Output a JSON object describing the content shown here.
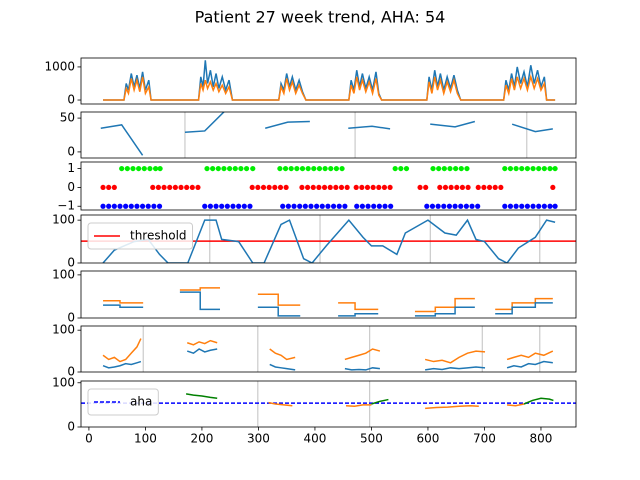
{
  "chart_data": [
    {
      "type": "line",
      "title": "Patient 27 week trend, AHA: 54",
      "xlim": [
        -14,
        862
      ],
      "ylim": [
        -120,
        1270
      ],
      "yticks": [
        0,
        1000
      ],
      "x": [
        25,
        62,
        66,
        70,
        75,
        80,
        85,
        90,
        95,
        100,
        106,
        110,
        194,
        198,
        202,
        206,
        210,
        215,
        220,
        225,
        230,
        236,
        242,
        248,
        254,
        336,
        340,
        345,
        350,
        355,
        360,
        366,
        372,
        378,
        384,
        460,
        464,
        469,
        474,
        479,
        484,
        490,
        496,
        502,
        508,
        513,
        518,
        598,
        602,
        607,
        612,
        617,
        622,
        628,
        634,
        640,
        646,
        652,
        658,
        734,
        738,
        743,
        748,
        753,
        758,
        764,
        770,
        776,
        782,
        788,
        794,
        800,
        806,
        810,
        825
      ],
      "series": [
        {
          "color": "#1f77b4",
          "values": [
            0,
            0,
            500,
            300,
            800,
            400,
            750,
            350,
            850,
            300,
            600,
            0,
            0,
            700,
            400,
            1200,
            500,
            900,
            400,
            800,
            350,
            700,
            300,
            600,
            0,
            0,
            500,
            300,
            800,
            400,
            700,
            300,
            600,
            250,
            0,
            0,
            600,
            300,
            900,
            400,
            800,
            350,
            700,
            300,
            850,
            200,
            0,
            0,
            700,
            300,
            900,
            400,
            800,
            300,
            700,
            350,
            750,
            300,
            0,
            0,
            600,
            300,
            800,
            400,
            1000,
            500,
            850,
            400,
            1050,
            500,
            900,
            400,
            700,
            0,
            0
          ]
        },
        {
          "color": "#ff7f0e",
          "values": [
            0,
            0,
            350,
            200,
            650,
            300,
            600,
            250,
            700,
            200,
            400,
            0,
            0,
            500,
            300,
            600,
            350,
            550,
            300,
            500,
            250,
            450,
            200,
            400,
            0,
            0,
            400,
            200,
            650,
            300,
            550,
            200,
            450,
            200,
            0,
            0,
            450,
            200,
            700,
            300,
            600,
            250,
            550,
            200,
            650,
            150,
            0,
            0,
            550,
            200,
            700,
            300,
            600,
            200,
            550,
            250,
            600,
            200,
            0,
            0,
            450,
            200,
            650,
            300,
            700,
            350,
            650,
            300,
            700,
            350,
            650,
            300,
            500,
            0,
            0
          ]
        }
      ]
    },
    {
      "type": "line",
      "xlim": [
        -14,
        862
      ],
      "ylim": [
        -9,
        59
      ],
      "yticks": [
        0,
        50
      ],
      "xgrid": [
        170,
        471,
        775
      ],
      "x": [
        21,
        58,
        95,
        132,
        170,
        205,
        240,
        276,
        312,
        352,
        391,
        425,
        459,
        501,
        533,
        568,
        604,
        648,
        683,
        716,
        749,
        790,
        821
      ],
      "series": [
        {
          "color": "#1f77b4",
          "values": [
            35,
            40,
            -5,
            null,
            29,
            31,
            60,
            null,
            35,
            44,
            45,
            null,
            35,
            38,
            34,
            null,
            41,
            37,
            45,
            null,
            41,
            30,
            34
          ]
        }
      ]
    },
    {
      "type": "scatter",
      "xlim": [
        -14,
        862
      ],
      "ylim": [
        -1.2,
        1.35
      ],
      "yticks": [
        {
          "value": -1,
          "label": "−1"
        },
        0,
        1
      ],
      "series": [
        {
          "color": "#00ee00",
          "x": [
            58,
            68,
            78,
            88,
            98,
            108,
            118,
            126,
            209,
            219,
            229,
            239,
            249,
            259,
            269,
            279,
            290,
            338,
            348,
            358,
            368,
            378,
            388,
            398,
            408,
            418,
            428,
            438,
            448,
            542,
            552,
            562,
            609,
            619,
            629,
            639,
            649,
            659,
            669,
            736,
            746,
            756,
            766,
            776,
            786,
            796,
            806,
            816,
            825
          ],
          "values": [
            1,
            1,
            1,
            1,
            1,
            1,
            1,
            1,
            1,
            1,
            1,
            1,
            1,
            1,
            1,
            1,
            1,
            1,
            1,
            1,
            1,
            1,
            1,
            1,
            1,
            1,
            1,
            1,
            1,
            1,
            1,
            1,
            1,
            1,
            1,
            1,
            1,
            1,
            1,
            1,
            1,
            1,
            1,
            1,
            1,
            1,
            1,
            1,
            1
          ]
        },
        {
          "color": "#ff0000",
          "x": [
            25,
            35,
            45,
            113,
            123,
            133,
            143,
            153,
            163,
            173,
            183,
            193,
            289,
            299,
            309,
            319,
            329,
            339,
            349,
            377,
            387,
            397,
            407,
            417,
            427,
            437,
            447,
            457,
            473,
            483,
            493,
            503,
            513,
            523,
            533,
            586,
            596,
            621,
            631,
            641,
            651,
            661,
            671,
            689,
            699,
            709,
            719,
            729,
            821
          ],
          "values": [
            0,
            0,
            0,
            0,
            0,
            0,
            0,
            0,
            0,
            0,
            0,
            0,
            0,
            0,
            0,
            0,
            0,
            0,
            0,
            0,
            0,
            0,
            0,
            0,
            0,
            0,
            0,
            0,
            0,
            0,
            0,
            0,
            0,
            0,
            0,
            0,
            0,
            0,
            0,
            0,
            0,
            0,
            0,
            0,
            0,
            0,
            0,
            0,
            0
          ]
        },
        {
          "color": "#0000ff",
          "x": [
            25,
            35,
            45,
            55,
            65,
            75,
            85,
            95,
            105,
            115,
            125,
            205,
            215,
            225,
            235,
            245,
            255,
            265,
            275,
            285,
            343,
            353,
            363,
            373,
            383,
            393,
            403,
            413,
            423,
            433,
            443,
            453,
            474,
            484,
            494,
            504,
            514,
            524,
            534,
            598,
            608,
            618,
            628,
            638,
            648,
            658,
            668,
            678,
            688,
            736,
            746,
            756,
            766,
            776,
            786,
            796,
            806,
            816,
            825
          ],
          "values": [
            -1,
            -1,
            -1,
            -1,
            -1,
            -1,
            -1,
            -1,
            -1,
            -1,
            -1,
            -1,
            -1,
            -1,
            -1,
            -1,
            -1,
            -1,
            -1,
            -1,
            -1,
            -1,
            -1,
            -1,
            -1,
            -1,
            -1,
            -1,
            -1,
            -1,
            -1,
            -1,
            -1,
            -1,
            -1,
            -1,
            -1,
            -1,
            -1,
            -1,
            -1,
            -1,
            -1,
            -1,
            -1,
            -1,
            -1,
            -1,
            -1,
            -1,
            -1,
            -1,
            -1,
            -1,
            -1,
            -1,
            -1,
            -1,
            -1
          ]
        }
      ]
    },
    {
      "type": "line",
      "xlim": [
        -14,
        862
      ],
      "ylim": [
        0,
        112
      ],
      "yticks": [
        0,
        100
      ],
      "xgrid": [
        214,
        409,
        604,
        798
      ],
      "legend": "upper left",
      "x": [
        25,
        45,
        80,
        105,
        125,
        140,
        175,
        205,
        225,
        235,
        265,
        290,
        310,
        340,
        355,
        380,
        395,
        420,
        460,
        485,
        500,
        520,
        545,
        560,
        600,
        630,
        650,
        670,
        685,
        700,
        725,
        740,
        760,
        790,
        810,
        825
      ],
      "series": [
        {
          "color": "#1f77b4",
          "values": [
            0,
            30,
            50,
            55,
            20,
            0,
            0,
            100,
            100,
            55,
            50,
            0,
            0,
            90,
            100,
            10,
            0,
            40,
            100,
            60,
            40,
            40,
            20,
            70,
            100,
            70,
            65,
            100,
            55,
            50,
            10,
            0,
            35,
            60,
            100,
            95
          ]
        }
      ],
      "hlines": [
        {
          "name": "threshold",
          "color": "#ff0000",
          "value": 51,
          "style": "solid"
        }
      ]
    },
    {
      "type": "line",
      "drawstyle": "steps-post",
      "xlim": [
        -14,
        862
      ],
      "ylim": [
        0,
        109
      ],
      "yticks": [
        0,
        100
      ],
      "x": [
        25,
        55,
        96,
        128,
        161,
        197,
        232,
        265,
        299,
        335,
        374,
        408,
        441,
        471,
        512,
        545,
        577,
        613,
        648,
        683,
        701,
        719,
        749,
        790,
        821
      ],
      "series": [
        {
          "color": "#ff7f0e",
          "values": [
            40,
            35,
            35,
            null,
            65,
            70,
            70,
            null,
            55,
            30,
            30,
            null,
            35,
            20,
            20,
            null,
            15,
            25,
            45,
            45,
            null,
            20,
            35,
            45,
            45
          ]
        },
        {
          "color": "#1f77b4",
          "values": [
            30,
            25,
            25,
            null,
            60,
            20,
            20,
            null,
            25,
            5,
            5,
            null,
            5,
            10,
            10,
            null,
            5,
            10,
            25,
            25,
            null,
            10,
            25,
            35,
            35
          ]
        }
      ]
    },
    {
      "type": "line",
      "xlim": [
        -14,
        862
      ],
      "ylim": [
        0,
        110
      ],
      "yticks": [
        0,
        100
      ],
      "xgrid": [
        96,
        299,
        497,
        696,
        798
      ],
      "x": [
        25,
        35,
        45,
        55,
        65,
        75,
        85,
        92,
        130,
        174,
        185,
        195,
        205,
        215,
        227,
        270,
        320,
        330,
        340,
        350,
        365,
        410,
        453,
        465,
        478,
        490,
        502,
        515,
        555,
        595,
        610,
        625,
        640,
        655,
        670,
        685,
        701,
        720,
        740,
        752,
        765,
        778,
        790,
        805,
        821
      ],
      "series": [
        {
          "color": "#ff7f0e",
          "values": [
            40,
            30,
            35,
            25,
            30,
            45,
            60,
            80,
            null,
            70,
            65,
            72,
            68,
            75,
            70,
            null,
            55,
            45,
            40,
            30,
            35,
            null,
            30,
            35,
            40,
            45,
            55,
            50,
            null,
            30,
            25,
            28,
            22,
            35,
            45,
            50,
            48,
            null,
            30,
            35,
            40,
            35,
            45,
            40,
            50
          ]
        },
        {
          "color": "#1f77b4",
          "values": [
            15,
            10,
            12,
            15,
            20,
            18,
            22,
            25,
            null,
            50,
            45,
            55,
            48,
            52,
            55,
            null,
            18,
            12,
            10,
            8,
            5,
            null,
            8,
            5,
            6,
            5,
            10,
            8,
            null,
            5,
            8,
            6,
            10,
            8,
            10,
            12,
            10,
            null,
            10,
            15,
            12,
            20,
            18,
            25,
            22
          ]
        }
      ]
    },
    {
      "type": "line",
      "xlim": [
        -14,
        862
      ],
      "ylim": [
        0,
        104
      ],
      "yticks": [
        0,
        100
      ],
      "xticks": [
        0,
        100,
        200,
        300,
        400,
        500,
        600,
        700,
        800
      ],
      "xgrid": [
        299,
        497
      ],
      "legend": "upper left",
      "x": [
        172,
        185,
        200,
        215,
        227,
        270,
        318,
        330,
        345,
        360,
        410,
        455,
        470,
        485,
        500,
        515,
        530,
        560,
        595,
        615,
        635,
        655,
        675,
        690,
        720,
        740,
        755,
        770,
        785,
        800,
        815,
        822
      ],
      "series": [
        {
          "color": "#ff7f0e",
          "values": [
            null,
            null,
            null,
            null,
            null,
            null,
            55,
            52,
            50,
            48,
            null,
            48,
            47,
            50,
            50,
            null,
            null,
            null,
            42,
            44,
            45,
            47,
            48,
            47,
            null,
            50,
            48,
            52,
            null,
            null,
            null,
            null
          ]
        },
        {
          "color": "#008000",
          "values": [
            75,
            72,
            70,
            67,
            65,
            null,
            null,
            null,
            null,
            null,
            null,
            null,
            null,
            null,
            52,
            58,
            62,
            null,
            null,
            null,
            null,
            null,
            null,
            null,
            null,
            null,
            null,
            52,
            60,
            65,
            63,
            60
          ]
        }
      ],
      "hlines": [
        {
          "name": "aha",
          "color": "#0000ff",
          "value": 54,
          "style": "dashed"
        }
      ]
    }
  ]
}
